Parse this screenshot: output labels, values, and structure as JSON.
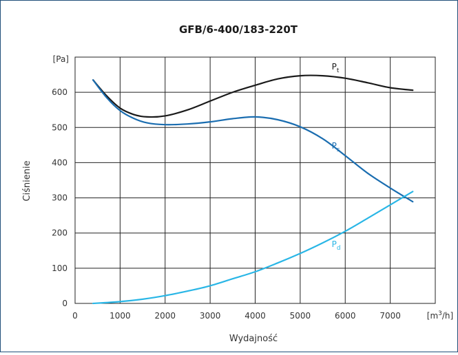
{
  "chart_data": {
    "type": "line",
    "title": "GFB/6-400/183-220T",
    "xlabel": "Wydajność",
    "ylabel": "Ciśnienie",
    "x_unit": {
      "pre": "[m",
      "sup": "3",
      "post": "/h]"
    },
    "y_unit": "[Pa]",
    "xlim": [
      0,
      8000
    ],
    "ylim": [
      0,
      700
    ],
    "x_ticks": [
      0,
      1000,
      2000,
      3000,
      4000,
      5000,
      6000,
      7000
    ],
    "y_ticks": [
      0,
      100,
      200,
      300,
      400,
      500,
      600
    ],
    "grid": true,
    "series": [
      {
        "name": "P",
        "sub": "t",
        "color": "#1a1a1a",
        "x": [
          400,
          700,
          1000,
          1300,
          1600,
          2000,
          2500,
          3000,
          3500,
          4000,
          4500,
          5000,
          5500,
          6000,
          6500,
          7000,
          7500
        ],
        "y": [
          635,
          590,
          555,
          537,
          530,
          533,
          550,
          575,
          600,
          620,
          638,
          647,
          647,
          640,
          627,
          613,
          606
        ]
      },
      {
        "name": "P",
        "sub": "s",
        "color": "#1a6db0",
        "x": [
          400,
          700,
          1000,
          1300,
          1600,
          2000,
          2500,
          3000,
          3500,
          4000,
          4500,
          5000,
          5500,
          6000,
          6500,
          7000,
          7500
        ],
        "y": [
          635,
          585,
          548,
          526,
          513,
          508,
          510,
          516,
          525,
          530,
          522,
          502,
          468,
          420,
          370,
          328,
          289
        ]
      },
      {
        "name": "P",
        "sub": "d",
        "color": "#29b6e6",
        "x": [
          400,
          1000,
          1500,
          2000,
          2500,
          3000,
          3500,
          4000,
          4500,
          5000,
          5500,
          6000,
          6500,
          7000,
          7500
        ],
        "y": [
          0,
          5,
          12,
          22,
          35,
          50,
          70,
          90,
          115,
          142,
          172,
          205,
          242,
          280,
          318
        ]
      }
    ]
  }
}
